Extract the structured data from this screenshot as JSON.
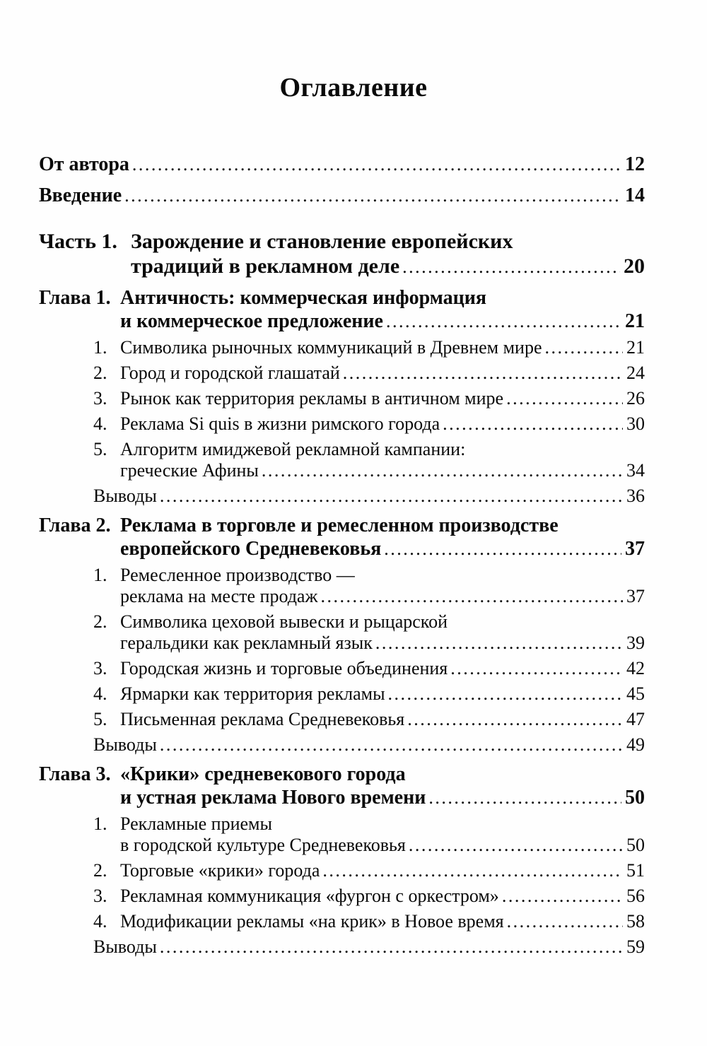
{
  "page": {
    "title": "Оглавление"
  },
  "toc": {
    "entries": [
      {
        "type": "front",
        "label": "",
        "lines": [
          "От автора"
        ],
        "page": "12"
      },
      {
        "type": "front",
        "label": "",
        "lines": [
          "Введение"
        ],
        "page": "14"
      },
      {
        "type": "part",
        "label": "Часть 1.",
        "lines": [
          "Зарождение и становление европейских",
          "традиций в рекламном деле"
        ],
        "page": "20"
      },
      {
        "type": "chapter",
        "label": "Глава 1.",
        "lines": [
          "Античность: коммерческая информация",
          "и коммерческое предложение"
        ],
        "page": "21"
      },
      {
        "type": "item",
        "label": "1.",
        "lines": [
          "Символика рыночных коммуникаций в Древнем мире"
        ],
        "page": "21"
      },
      {
        "type": "item",
        "label": "2.",
        "lines": [
          "Город и городской глашатай"
        ],
        "page": "24"
      },
      {
        "type": "item",
        "label": "3.",
        "lines": [
          "Рынок как территория рекламы в античном мире"
        ],
        "page": "26"
      },
      {
        "type": "item",
        "label": "4.",
        "lines": [
          "Реклама Si quis в жизни римского города"
        ],
        "page": "30"
      },
      {
        "type": "item",
        "label": "5.",
        "lines": [
          "Алгоритм имиджевой рекламной кампании:",
          "греческие Афины"
        ],
        "page": "34"
      },
      {
        "type": "conclusion",
        "label": "",
        "lines": [
          "Выводы"
        ],
        "page": "36"
      },
      {
        "type": "chapter",
        "label": "Глава 2.",
        "lines": [
          "Реклама в торговле и ремесленном производстве",
          "европейского Средневековья"
        ],
        "page": "37"
      },
      {
        "type": "item",
        "label": "1.",
        "lines": [
          "Ремесленное производство —",
          "реклама на месте продаж"
        ],
        "page": "37"
      },
      {
        "type": "item",
        "label": "2.",
        "lines": [
          "Символика цеховой вывески и рыцарской",
          "геральдики как рекламный язык"
        ],
        "page": "39"
      },
      {
        "type": "item",
        "label": "3.",
        "lines": [
          "Городская жизнь и торговые объединения"
        ],
        "page": "42"
      },
      {
        "type": "item",
        "label": "4.",
        "lines": [
          "Ярмарки как территория рекламы"
        ],
        "page": "45"
      },
      {
        "type": "item",
        "label": "5.",
        "lines": [
          "Письменная реклама Средневековья"
        ],
        "page": "47"
      },
      {
        "type": "conclusion",
        "label": "",
        "lines": [
          "Выводы"
        ],
        "page": "49"
      },
      {
        "type": "chapter",
        "label": "Глава 3.",
        "lines": [
          "«Крики» средневекового города",
          "и устная реклама Нового времени"
        ],
        "page": "50"
      },
      {
        "type": "item",
        "label": "1.",
        "lines": [
          "Рекламные приемы",
          "в городской культуре Средневековья"
        ],
        "page": "50"
      },
      {
        "type": "item",
        "label": "2.",
        "lines": [
          "Торговые «крики» города"
        ],
        "page": "51"
      },
      {
        "type": "item",
        "label": "3.",
        "lines": [
          "Рекламная коммуникация «фургон с оркестром»"
        ],
        "page": "56"
      },
      {
        "type": "item",
        "label": "4.",
        "lines": [
          "Модификации рекламы «на крик» в Новое время"
        ],
        "page": "58"
      },
      {
        "type": "conclusion",
        "label": "",
        "lines": [
          "Выводы"
        ],
        "page": "59"
      }
    ]
  }
}
